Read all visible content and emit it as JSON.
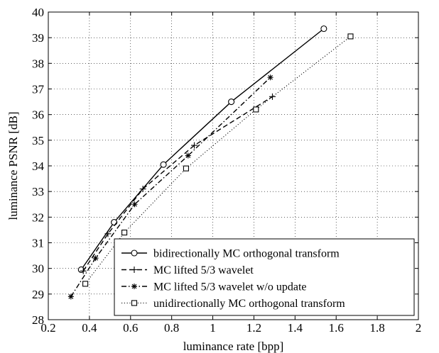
{
  "chart_data": {
    "type": "line",
    "title": "",
    "xlabel": "luminance rate [bpp]",
    "ylabel": "luminance PSNR [dB]",
    "xlim": [
      0.2,
      2
    ],
    "ylim": [
      28,
      40
    ],
    "xticks": [
      "0.2",
      "0.4",
      "0.6",
      "0.8",
      "1",
      "1.2",
      "1.4",
      "1.6",
      "1.8",
      "2"
    ],
    "yticks": [
      "28",
      "29",
      "30",
      "31",
      "32",
      "33",
      "34",
      "35",
      "36",
      "37",
      "38",
      "39",
      "40"
    ],
    "grid": true,
    "legend_position": "bottom-right",
    "series": [
      {
        "name": "bidirectionally MC orthogonal transform",
        "line_style": "solid",
        "marker": "circle",
        "x": [
          0.36,
          0.52,
          0.76,
          1.09,
          1.54
        ],
        "y": [
          29.95,
          31.8,
          34.05,
          36.5,
          39.35
        ]
      },
      {
        "name": "MC lifted 5/3 wavelet",
        "line_style": "dashed",
        "marker": "plus",
        "x": [
          0.37,
          0.49,
          0.66,
          0.91,
          1.29
        ],
        "y": [
          29.9,
          31.35,
          33.1,
          34.8,
          36.7
        ]
      },
      {
        "name": "MC lifted 5/3 wavelet w/o update",
        "line_style": "dashdot",
        "marker": "asterisk",
        "x": [
          0.31,
          0.43,
          0.62,
          0.88,
          1.28
        ],
        "y": [
          28.9,
          30.4,
          32.5,
          34.4,
          37.45
        ]
      },
      {
        "name": "unidirectionally MC orthogonal transform",
        "line_style": "dotted",
        "marker": "square",
        "x": [
          0.38,
          0.57,
          0.87,
          1.21,
          1.67
        ],
        "y": [
          29.4,
          31.4,
          33.9,
          36.2,
          39.05
        ]
      }
    ]
  }
}
